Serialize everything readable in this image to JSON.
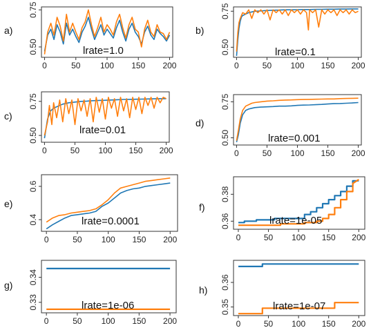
{
  "colors": {
    "series_a": "#1f77b4",
    "series_b": "#ff7f0e",
    "frame": "#333333"
  },
  "chart_data": [
    {
      "label": "a)",
      "type": "line",
      "annotation": "lrate=1.0",
      "xlim": [
        -5,
        205
      ],
      "ylim": [
        0.43,
        0.77
      ],
      "xticks": [
        "0",
        "50",
        "100",
        "150",
        "200"
      ],
      "yticks": [
        "0.50",
        "0.75"
      ],
      "yticks_values": [
        0.5,
        0.75
      ],
      "grid": false,
      "legend": "none",
      "series": [
        {
          "x": [
            0,
            5,
            10,
            15,
            20,
            25,
            30,
            35,
            40,
            45,
            50,
            55,
            60,
            65,
            70,
            75,
            80,
            85,
            90,
            95,
            100,
            105,
            110,
            115,
            120,
            125,
            130,
            135,
            140,
            145,
            150,
            155,
            160,
            165,
            170,
            175,
            180,
            185,
            190,
            195,
            200
          ],
          "values": [
            0.47,
            0.58,
            0.62,
            0.55,
            0.65,
            0.6,
            0.52,
            0.66,
            0.58,
            0.62,
            0.57,
            0.53,
            0.6,
            0.64,
            0.7,
            0.62,
            0.55,
            0.6,
            0.65,
            0.58,
            0.62,
            0.59,
            0.56,
            0.63,
            0.68,
            0.6,
            0.54,
            0.62,
            0.66,
            0.6,
            0.57,
            0.52,
            0.6,
            0.64,
            0.58,
            0.55,
            0.62,
            0.59,
            0.57,
            0.54,
            0.58
          ]
        },
        {
          "x": [
            0,
            5,
            10,
            15,
            20,
            25,
            30,
            35,
            40,
            45,
            50,
            55,
            60,
            65,
            70,
            75,
            80,
            85,
            90,
            95,
            100,
            105,
            110,
            115,
            120,
            125,
            130,
            135,
            140,
            145,
            150,
            155,
            160,
            165,
            170,
            175,
            180,
            185,
            190,
            195,
            200
          ],
          "values": [
            0.45,
            0.6,
            0.66,
            0.58,
            0.7,
            0.64,
            0.54,
            0.72,
            0.6,
            0.66,
            0.6,
            0.55,
            0.63,
            0.67,
            0.75,
            0.65,
            0.57,
            0.63,
            0.7,
            0.6,
            0.65,
            0.62,
            0.58,
            0.67,
            0.72,
            0.63,
            0.56,
            0.65,
            0.7,
            0.62,
            0.6,
            0.5,
            0.62,
            0.68,
            0.6,
            0.57,
            0.65,
            0.6,
            0.59,
            0.55,
            0.6
          ]
        }
      ]
    },
    {
      "label": "b)",
      "type": "line",
      "annotation": "lrate=0.1",
      "xlim": [
        -5,
        205
      ],
      "ylim": [
        0.43,
        0.78
      ],
      "xticks": [
        "0",
        "50",
        "100",
        "150",
        "200"
      ],
      "yticks": [
        "0.50",
        "0.75"
      ],
      "yticks_values": [
        0.5,
        0.75
      ],
      "grid": false,
      "legend": "none",
      "series": [
        {
          "x": [
            0,
            2,
            4,
            6,
            8,
            10,
            15,
            20,
            25,
            30,
            40,
            50,
            60,
            70,
            80,
            90,
            100,
            110,
            120,
            130,
            140,
            150,
            160,
            170,
            180,
            190,
            200
          ],
          "values": [
            0.44,
            0.55,
            0.63,
            0.68,
            0.71,
            0.72,
            0.73,
            0.74,
            0.745,
            0.75,
            0.752,
            0.755,
            0.757,
            0.758,
            0.76,
            0.76,
            0.761,
            0.762,
            0.762,
            0.763,
            0.763,
            0.764,
            0.764,
            0.765,
            0.765,
            0.766,
            0.766
          ]
        },
        {
          "x": [
            0,
            2,
            4,
            6,
            8,
            10,
            15,
            20,
            25,
            30,
            35,
            40,
            45,
            50,
            55,
            60,
            65,
            70,
            75,
            80,
            85,
            90,
            95,
            100,
            105,
            110,
            115,
            118,
            120,
            125,
            130,
            135,
            140,
            145,
            150,
            155,
            160,
            165,
            170,
            175,
            180,
            185,
            190,
            195,
            200
          ],
          "values": [
            0.47,
            0.6,
            0.67,
            0.7,
            0.72,
            0.74,
            0.73,
            0.76,
            0.7,
            0.76,
            0.74,
            0.76,
            0.73,
            0.76,
            0.69,
            0.76,
            0.74,
            0.76,
            0.73,
            0.76,
            0.72,
            0.76,
            0.74,
            0.76,
            0.73,
            0.76,
            0.74,
            0.62,
            0.76,
            0.74,
            0.76,
            0.64,
            0.76,
            0.73,
            0.76,
            0.74,
            0.76,
            0.72,
            0.76,
            0.74,
            0.76,
            0.73,
            0.76,
            0.74,
            0.75
          ]
        }
      ]
    },
    {
      "label": "c)",
      "type": "line",
      "annotation": "lrate=0.01",
      "xlim": [
        -5,
        205
      ],
      "ylim": [
        0.45,
        0.82
      ],
      "xticks": [
        "0",
        "50",
        "100",
        "150",
        "200"
      ],
      "yticks": [
        "0.50",
        "0.75"
      ],
      "yticks_values": [
        0.5,
        0.75
      ],
      "grid": false,
      "legend": "none",
      "series": [
        {
          "x": [
            0,
            5,
            10,
            15,
            20,
            25,
            30,
            40,
            50,
            60,
            70,
            80,
            90,
            100,
            110,
            120,
            130,
            140,
            150,
            160,
            170,
            180,
            190,
            200
          ],
          "values": [
            0.48,
            0.62,
            0.68,
            0.7,
            0.71,
            0.72,
            0.73,
            0.74,
            0.745,
            0.75,
            0.752,
            0.755,
            0.757,
            0.758,
            0.76,
            0.762,
            0.764,
            0.765,
            0.766,
            0.767,
            0.768,
            0.769,
            0.77,
            0.77
          ]
        },
        {
          "x": [
            0,
            5,
            8,
            12,
            15,
            20,
            25,
            30,
            35,
            40,
            45,
            50,
            55,
            60,
            65,
            70,
            75,
            80,
            85,
            90,
            95,
            100,
            105,
            110,
            115,
            120,
            125,
            130,
            135,
            140,
            145,
            150,
            155,
            160,
            165,
            170,
            175,
            180,
            185,
            190,
            195,
            200
          ],
          "values": [
            0.5,
            0.6,
            0.72,
            0.58,
            0.74,
            0.63,
            0.76,
            0.6,
            0.77,
            0.66,
            0.76,
            0.58,
            0.77,
            0.68,
            0.76,
            0.64,
            0.77,
            0.6,
            0.78,
            0.67,
            0.77,
            0.62,
            0.78,
            0.7,
            0.77,
            0.64,
            0.78,
            0.68,
            0.77,
            0.63,
            0.78,
            0.69,
            0.78,
            0.66,
            0.78,
            0.72,
            0.78,
            0.7,
            0.78,
            0.74,
            0.78,
            0.77
          ]
        }
      ]
    },
    {
      "label": "d)",
      "type": "line",
      "annotation": "lrate=0.001",
      "xlim": [
        -5,
        205
      ],
      "ylim": [
        0.45,
        0.8
      ],
      "xticks": [
        "0",
        "50",
        "100",
        "150",
        "200"
      ],
      "yticks": [
        "0.50",
        "0.75"
      ],
      "yticks_values": [
        0.5,
        0.75
      ],
      "grid": false,
      "legend": "none",
      "series": [
        {
          "x": [
            0,
            3,
            6,
            10,
            15,
            20,
            25,
            30,
            40,
            50,
            60,
            70,
            80,
            90,
            100,
            110,
            120,
            130,
            140,
            150,
            160,
            170,
            180,
            190,
            200
          ],
          "values": [
            0.47,
            0.52,
            0.6,
            0.66,
            0.69,
            0.7,
            0.705,
            0.71,
            0.713,
            0.715,
            0.717,
            0.72,
            0.72,
            0.722,
            0.725,
            0.727,
            0.728,
            0.73,
            0.732,
            0.735,
            0.737,
            0.738,
            0.74,
            0.742,
            0.745
          ]
        },
        {
          "x": [
            0,
            3,
            6,
            10,
            15,
            20,
            25,
            30,
            40,
            50,
            60,
            70,
            80,
            90,
            100,
            110,
            120,
            130,
            140,
            150,
            160,
            170,
            180,
            190,
            200
          ],
          "values": [
            0.48,
            0.55,
            0.63,
            0.69,
            0.72,
            0.73,
            0.74,
            0.745,
            0.75,
            0.755,
            0.757,
            0.76,
            0.762,
            0.763,
            0.765,
            0.766,
            0.767,
            0.768,
            0.769,
            0.77,
            0.77,
            0.772,
            0.773,
            0.774,
            0.775
          ]
        }
      ]
    },
    {
      "label": "e)",
      "type": "line",
      "annotation": "lrate=0.0001",
      "xlim": [
        -8,
        212
      ],
      "ylim": [
        0.33,
        0.67
      ],
      "xticks": [
        "0",
        "50",
        "100",
        "150",
        "200"
      ],
      "yticks": [
        "0.4",
        "0.6"
      ],
      "yticks_values": [
        0.4,
        0.6
      ],
      "grid": false,
      "legend": "none",
      "series": [
        {
          "x": [
            0,
            10,
            20,
            30,
            40,
            50,
            60,
            70,
            80,
            90,
            100,
            110,
            120,
            130,
            140,
            150,
            160,
            170,
            180,
            190,
            200
          ],
          "values": [
            0.345,
            0.37,
            0.39,
            0.41,
            0.425,
            0.43,
            0.435,
            0.44,
            0.45,
            0.48,
            0.5,
            0.53,
            0.56,
            0.575,
            0.585,
            0.59,
            0.6,
            0.605,
            0.61,
            0.615,
            0.62
          ]
        },
        {
          "x": [
            0,
            10,
            20,
            30,
            40,
            50,
            60,
            70,
            80,
            90,
            100,
            110,
            120,
            130,
            140,
            150,
            160,
            170,
            180,
            190,
            200
          ],
          "values": [
            0.385,
            0.41,
            0.425,
            0.43,
            0.44,
            0.445,
            0.45,
            0.455,
            0.465,
            0.49,
            0.52,
            0.56,
            0.59,
            0.6,
            0.61,
            0.62,
            0.63,
            0.635,
            0.64,
            0.645,
            0.65
          ]
        }
      ]
    },
    {
      "label": "f)",
      "type": "line",
      "annotation": "lrate=1e-05",
      "xlim": [
        -8,
        210
      ],
      "ylim": [
        0.354,
        0.393
      ],
      "xticks": [
        "0",
        "50",
        "100",
        "150",
        "200"
      ],
      "yticks": [
        "0.36",
        "0.38"
      ],
      "yticks_values": [
        0.36,
        0.38
      ],
      "grid": false,
      "legend": "none",
      "series": [
        {
          "x": [
            0,
            10,
            10,
            30,
            30,
            60,
            60,
            110,
            110,
            120,
            120,
            130,
            130,
            140,
            140,
            150,
            150,
            160,
            160,
            170,
            170,
            180,
            180,
            190,
            190,
            200
          ],
          "values": [
            0.359,
            0.359,
            0.36,
            0.36,
            0.361,
            0.361,
            0.362,
            0.362,
            0.365,
            0.365,
            0.367,
            0.367,
            0.37,
            0.37,
            0.373,
            0.373,
            0.376,
            0.376,
            0.379,
            0.379,
            0.382,
            0.382,
            0.386,
            0.386,
            0.39,
            0.39
          ]
        },
        {
          "x": [
            0,
            10,
            10,
            70,
            70,
            110,
            110,
            130,
            130,
            140,
            140,
            150,
            150,
            160,
            160,
            170,
            170,
            180,
            180,
            190,
            190,
            200
          ],
          "values": [
            0.357,
            0.357,
            0.357,
            0.357,
            0.358,
            0.358,
            0.359,
            0.359,
            0.36,
            0.36,
            0.362,
            0.362,
            0.365,
            0.365,
            0.37,
            0.37,
            0.376,
            0.376,
            0.382,
            0.382,
            0.388,
            0.391
          ]
        }
      ]
    },
    {
      "label": "g)",
      "type": "line",
      "annotation": "lrate=1e-06",
      "xlim": [
        -8,
        210
      ],
      "ylim": [
        0.3258,
        0.3468
      ],
      "xticks": [
        "0",
        "50",
        "100",
        "150",
        "200"
      ],
      "yticks": [
        "0.33",
        "0.34"
      ],
      "yticks_values": [
        0.33,
        0.34
      ],
      "grid": false,
      "legend": "none",
      "series": [
        {
          "x": [
            0,
            200
          ],
          "values": [
            0.3435,
            0.3435
          ]
        },
        {
          "x": [
            0,
            200
          ],
          "values": [
            0.3272,
            0.3272
          ]
        }
      ]
    },
    {
      "label": "h)",
      "type": "line",
      "annotation": "lrate=1e-07",
      "xlim": [
        -8,
        210
      ],
      "ylim": [
        0.3465,
        0.369
      ],
      "xticks": [
        "0",
        "50",
        "100",
        "150",
        "200"
      ],
      "yticks": [
        "0.35",
        "0.36"
      ],
      "yticks_values": [
        0.35,
        0.36
      ],
      "grid": false,
      "legend": "none",
      "series": [
        {
          "x": [
            0,
            40,
            40,
            200
          ],
          "values": [
            0.3665,
            0.3665,
            0.3675,
            0.3675
          ]
        },
        {
          "x": [
            0,
            40,
            40,
            160,
            160,
            200
          ],
          "values": [
            0.3473,
            0.3473,
            0.3495,
            0.3495,
            0.3518,
            0.3518
          ]
        }
      ]
    }
  ]
}
